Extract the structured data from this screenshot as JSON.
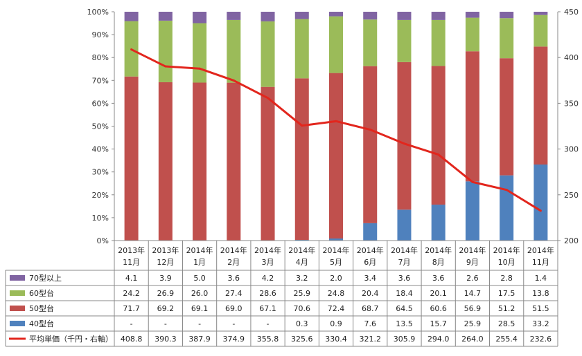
{
  "chart_data": {
    "type": "bar",
    "stacked": true,
    "stack_mode": "percent",
    "categories": [
      [
        "2013年",
        "11月"
      ],
      [
        "2013年",
        "12月"
      ],
      [
        "2014年",
        "1月"
      ],
      [
        "2014年",
        "2月"
      ],
      [
        "2014年",
        "3月"
      ],
      [
        "2014年",
        "4月"
      ],
      [
        "2014年",
        "5月"
      ],
      [
        "2014年",
        "6月"
      ],
      [
        "2014年",
        "7月"
      ],
      [
        "2014年",
        "8月"
      ],
      [
        "2014年",
        "9月"
      ],
      [
        "2014年",
        "10月"
      ],
      [
        "2014年",
        "11月"
      ]
    ],
    "series": [
      {
        "name": "70型以上",
        "color": "#8064a2",
        "values": [
          4.1,
          3.9,
          5.0,
          3.6,
          4.2,
          3.2,
          2.0,
          3.4,
          3.6,
          3.6,
          2.6,
          2.8,
          1.4
        ]
      },
      {
        "name": "60型台",
        "color": "#9bbb59",
        "values": [
          24.2,
          26.9,
          26.0,
          27.4,
          28.6,
          25.9,
          24.8,
          20.4,
          18.4,
          20.1,
          14.7,
          17.5,
          13.8
        ]
      },
      {
        "name": "50型台",
        "color": "#c0504d",
        "values": [
          71.7,
          69.2,
          69.1,
          69.0,
          67.1,
          70.6,
          72.4,
          68.7,
          64.5,
          60.6,
          56.9,
          51.2,
          51.5
        ]
      },
      {
        "name": "40型台",
        "color": "#4f81bd",
        "values": [
          null,
          null,
          null,
          null,
          null,
          0.3,
          0.9,
          7.6,
          13.5,
          15.7,
          25.9,
          28.5,
          33.2
        ]
      }
    ],
    "line_series": {
      "name": "平均単価（千円・右軸）",
      "color": "#e2261d",
      "axis": "right",
      "values": [
        408.8,
        390.3,
        387.9,
        374.9,
        355.8,
        325.6,
        330.4,
        321.2,
        305.9,
        294.0,
        264.0,
        255.4,
        232.6
      ]
    },
    "y_left": {
      "ylim": [
        0,
        100
      ],
      "ticks": [
        "0%",
        "10%",
        "20%",
        "30%",
        "40%",
        "50%",
        "60%",
        "70%",
        "80%",
        "90%",
        "100%"
      ]
    },
    "y_right": {
      "ylim": [
        200,
        450
      ],
      "ticks": [
        "200",
        "250",
        "300",
        "350",
        "400",
        "450"
      ]
    },
    "missing_label": "-",
    "data_table": true,
    "title": "",
    "xlabel": "",
    "ylabel": ""
  }
}
